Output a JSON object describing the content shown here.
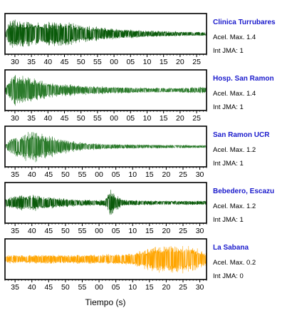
{
  "chart_data": {
    "type": "line",
    "xlabel": "Tiempo (s)",
    "name_color": "#1a1acc",
    "panels": [
      {
        "name": "Clinica Turrubares",
        "acel": "Acel. Max. 1.4",
        "jma": "Int JMA: 1",
        "color": "#0a5a0a",
        "ticks": [
          "30",
          "35",
          "40",
          "45",
          "50",
          "55",
          "00",
          "05",
          "10",
          "15",
          "20",
          "25"
        ],
        "tick_start": 30,
        "x_range": [
          27,
          88
        ],
        "envelope": [
          [
            27,
            0.05
          ],
          [
            28.5,
            0.95
          ],
          [
            33,
            0.75
          ],
          [
            38,
            0.7
          ],
          [
            43,
            0.7
          ],
          [
            45,
            0.8
          ],
          [
            50,
            0.55
          ],
          [
            56,
            0.4
          ],
          [
            62,
            0.3
          ],
          [
            70,
            0.22
          ],
          [
            80,
            0.14
          ],
          [
            88,
            0.12
          ]
        ]
      },
      {
        "name": "Hosp. San Ramon",
        "acel": "Acel. Max. 1.4",
        "jma": "Int JMA: 1",
        "color": "#2a7a2a",
        "ticks": [
          "30",
          "35",
          "40",
          "45",
          "50",
          "55",
          "00",
          "05",
          "10",
          "15",
          "20",
          "25"
        ],
        "tick_start": 30,
        "x_range": [
          27,
          88
        ],
        "envelope": [
          [
            27,
            0.1
          ],
          [
            29,
            0.95
          ],
          [
            33,
            0.9
          ],
          [
            36,
            0.75
          ],
          [
            40,
            0.5
          ],
          [
            45,
            0.35
          ],
          [
            50,
            0.3
          ],
          [
            55,
            0.25
          ],
          [
            62,
            0.2
          ],
          [
            70,
            0.16
          ],
          [
            80,
            0.14
          ],
          [
            88,
            0.22
          ]
        ]
      },
      {
        "name": "San Ramon UCR",
        "acel": "Acel. Max. 1.2",
        "jma": "Int JMA: 1",
        "color": "#2a7a2a",
        "ticks": [
          "35",
          "40",
          "45",
          "50",
          "55",
          "00",
          "05",
          "10",
          "15",
          "20",
          "25",
          "30"
        ],
        "tick_start": 35,
        "x_range": [
          32,
          92
        ],
        "envelope": [
          [
            32,
            0.1
          ],
          [
            34,
            0.6
          ],
          [
            37,
            0.75
          ],
          [
            40,
            1.0
          ],
          [
            44,
            0.75
          ],
          [
            48,
            0.5
          ],
          [
            53,
            0.3
          ],
          [
            58,
            0.2
          ],
          [
            65,
            0.15
          ],
          [
            75,
            0.12
          ],
          [
            85,
            0.1
          ],
          [
            92,
            0.08
          ]
        ]
      },
      {
        "name": "Bebedero, Escazu",
        "acel": "Acel. Max. 1.2",
        "jma": "Int JMA: 1",
        "color": "#0a5a0a",
        "ticks": [
          "35",
          "40",
          "45",
          "50",
          "55",
          "00",
          "05",
          "10",
          "15",
          "20",
          "25",
          "30"
        ],
        "tick_start": 35,
        "x_range": [
          32,
          92
        ],
        "envelope": [
          [
            32,
            0.25
          ],
          [
            35,
            0.45
          ],
          [
            40,
            0.5
          ],
          [
            45,
            0.4
          ],
          [
            50,
            0.25
          ],
          [
            55,
            0.2
          ],
          [
            60,
            0.18
          ],
          [
            62,
            0.25
          ],
          [
            63.5,
            0.95
          ],
          [
            64.5,
            0.55
          ],
          [
            67,
            0.2
          ],
          [
            75,
            0.14
          ],
          [
            85,
            0.13
          ],
          [
            92,
            0.13
          ]
        ]
      },
      {
        "name": "La Sabana",
        "acel": "Acel. Max. 0.2",
        "jma": "Int JMA: 0",
        "color": "#ffa500",
        "ticks": [
          "35",
          "40",
          "45",
          "50",
          "55",
          "00",
          "05",
          "10",
          "15",
          "20",
          "25",
          "30"
        ],
        "tick_start": 35,
        "x_range": [
          32,
          92
        ],
        "envelope": [
          [
            32,
            0.25
          ],
          [
            40,
            0.28
          ],
          [
            50,
            0.28
          ],
          [
            60,
            0.3
          ],
          [
            68,
            0.35
          ],
          [
            73,
            0.55
          ],
          [
            77,
            0.85
          ],
          [
            82,
            0.9
          ],
          [
            86,
            0.85
          ],
          [
            89,
            0.7
          ],
          [
            92,
            0.4
          ]
        ]
      }
    ]
  }
}
